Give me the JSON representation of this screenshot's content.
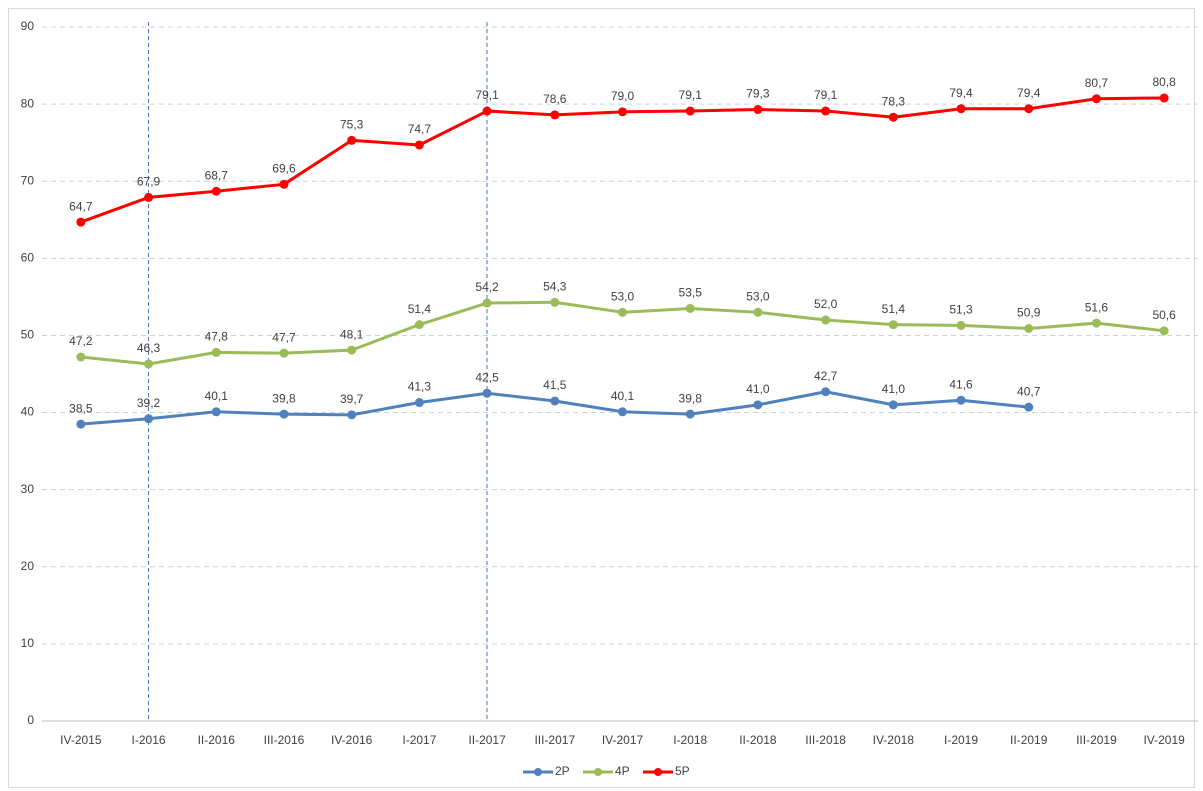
{
  "chart_data": {
    "type": "line",
    "categories": [
      "IV-2015",
      "I-2016",
      "II-2016",
      "III-2016",
      "IV-2016",
      "I-2017",
      "II-2017",
      "III-2017",
      "IV-2017",
      "I-2018",
      "II-2018",
      "III-2018",
      "IV-2018",
      "I-2019",
      "II-2019",
      "III-2019",
      "IV-2019"
    ],
    "series": [
      {
        "name": "2P",
        "color": "#4f81bd",
        "values": [
          38.5,
          39.2,
          40.1,
          39.8,
          39.7,
          41.3,
          42.5,
          41.5,
          40.1,
          39.8,
          41.0,
          42.7,
          41.0,
          41.6,
          40.7,
          null,
          null
        ],
        "value_labels": [
          "38,5",
          "39,2",
          "40,1",
          "39,8",
          "39,7",
          "41,3",
          "42,5",
          "41,5",
          "40,1",
          "39,8",
          "41,0",
          "42,7",
          "41,0",
          "41,6",
          "40,7",
          null,
          null
        ]
      },
      {
        "name": "4P",
        "color": "#9bbb59",
        "values": [
          47.2,
          46.3,
          47.8,
          47.7,
          48.1,
          51.4,
          54.2,
          54.3,
          53.0,
          53.5,
          53.0,
          52.0,
          51.4,
          51.3,
          50.9,
          51.6,
          50.6
        ],
        "value_labels": [
          "47,2",
          "46,3",
          "47,8",
          "47,7",
          "48,1",
          "51,4",
          "54,2",
          "54,3",
          "53,0",
          "53,5",
          "53,0",
          "52,0",
          "51,4",
          "51,3",
          "50,9",
          "51,6",
          "50,6"
        ]
      },
      {
        "name": "5P",
        "color": "#ff0000",
        "values": [
          64.7,
          67.9,
          68.7,
          69.6,
          75.3,
          74.7,
          79.1,
          78.6,
          79.0,
          79.1,
          79.3,
          79.1,
          78.3,
          79.4,
          79.4,
          80.7,
          80.8
        ],
        "value_labels": [
          "64,7",
          "67,9",
          "68,7",
          "69,6",
          "75,3",
          "74,7",
          "79,1",
          "78,6",
          "79,0",
          "79,1",
          "79,3",
          "79,1",
          "78,3",
          "79,4",
          "79,4",
          "80,7",
          "80,8"
        ]
      }
    ],
    "ylim": [
      0,
      90
    ],
    "yticks": [
      0,
      10,
      20,
      30,
      40,
      50,
      60,
      70,
      80,
      90
    ],
    "grid": true,
    "legend": "bottom"
  }
}
